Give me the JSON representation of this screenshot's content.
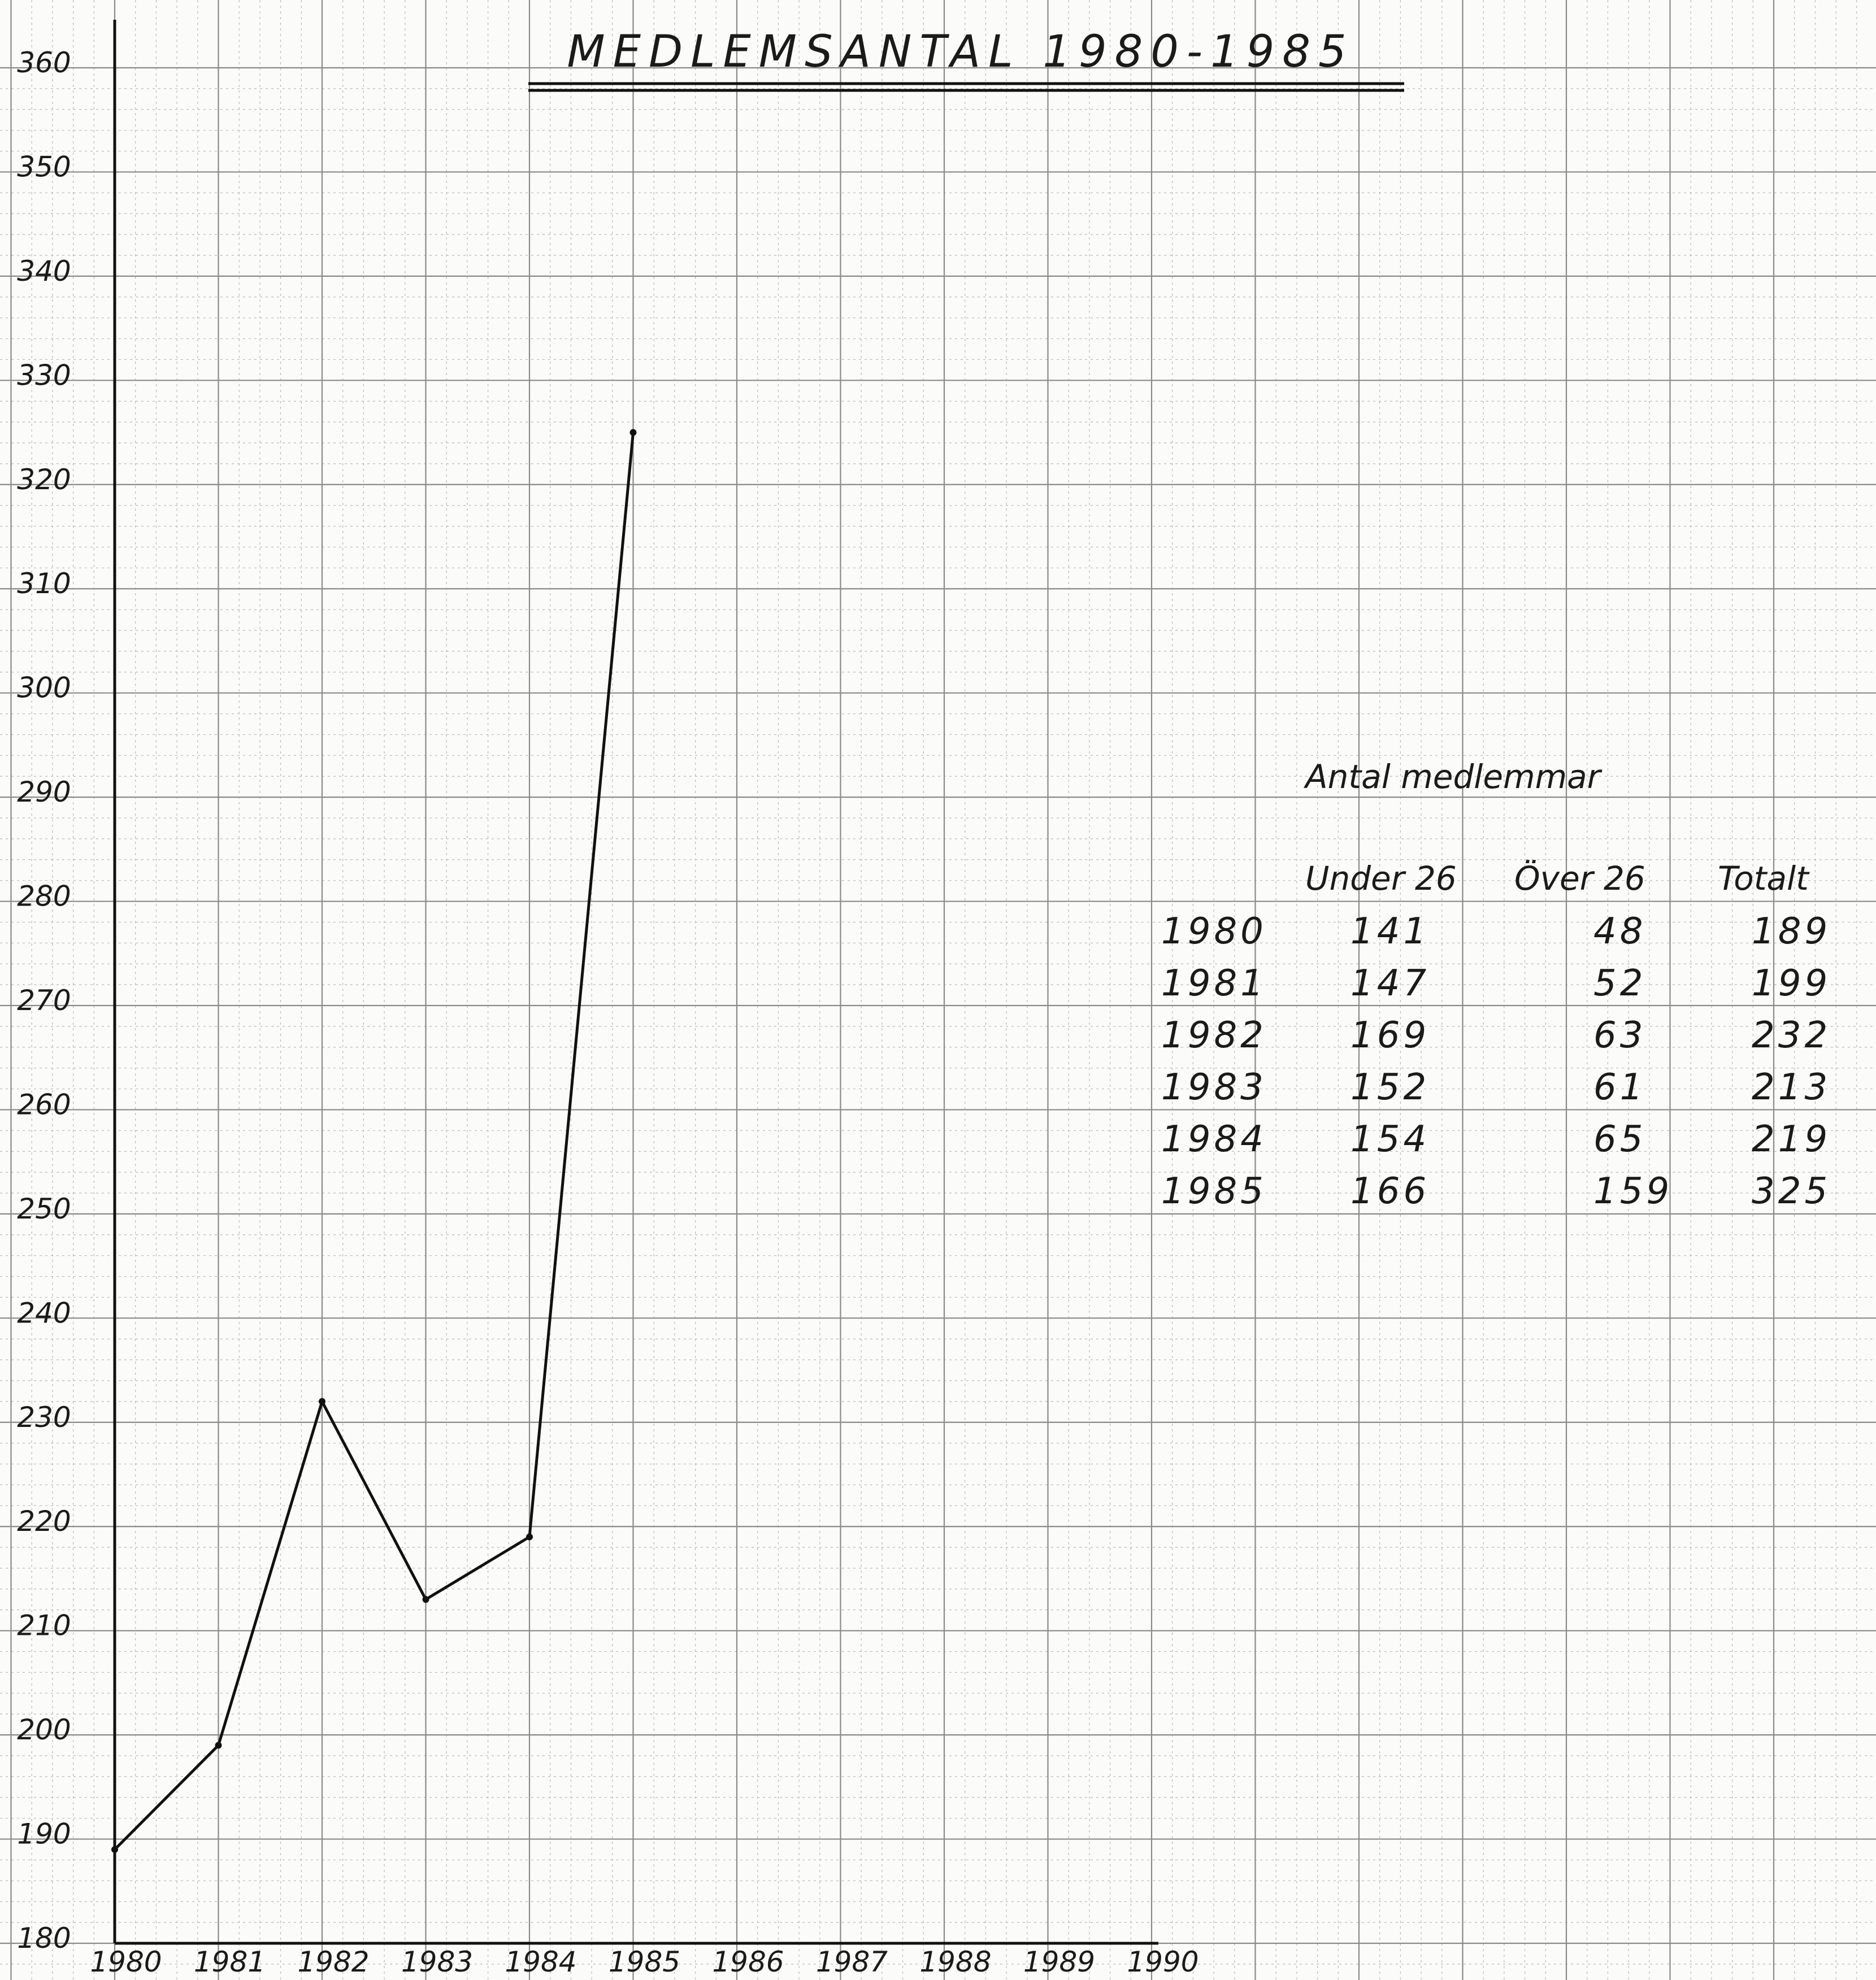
{
  "chart_data": {
    "type": "line",
    "title": "MEDLEMSANTAL 1980-1985",
    "xlabel": "",
    "ylabel": "",
    "x_ticks": [
      "1980",
      "1981",
      "1982",
      "1983",
      "1984",
      "1985",
      "1986",
      "1987",
      "1988",
      "1989",
      "1990"
    ],
    "y_ticks": [
      "180",
      "190",
      "200",
      "210",
      "220",
      "230",
      "240",
      "250",
      "260",
      "270",
      "280",
      "290",
      "300",
      "310",
      "320",
      "330",
      "340",
      "350",
      "360"
    ],
    "xlim": [
      1980,
      1990
    ],
    "ylim": [
      180,
      360
    ],
    "grid": true,
    "series": [
      {
        "x": [
          1980,
          1981,
          1982,
          1983,
          1984,
          1985
        ],
        "values": [
          189,
          199,
          232,
          213,
          219,
          325
        ]
      }
    ],
    "table": {
      "title": "Antal medlemmar",
      "columns": [
        "Under 26",
        "Över 26",
        "Totalt"
      ],
      "rows": [
        {
          "year": "1980",
          "under": "141",
          "over": "48",
          "total": "189"
        },
        {
          "year": "1981",
          "under": "147",
          "over": "52",
          "total": "199"
        },
        {
          "year": "1982",
          "under": "169",
          "over": "63",
          "total": "232"
        },
        {
          "year": "1983",
          "under": "152",
          "over": "61",
          "total": "213"
        },
        {
          "year": "1984",
          "under": "154",
          "over": "65",
          "total": "219"
        },
        {
          "year": "1985",
          "under": "166",
          "over": "159",
          "total": "325"
        }
      ]
    }
  }
}
